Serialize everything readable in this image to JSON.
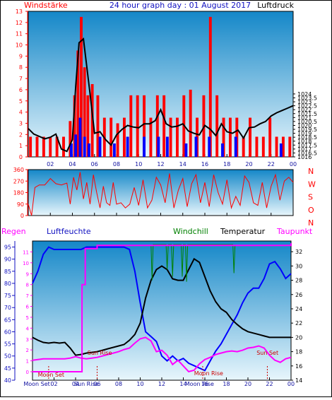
{
  "header": {
    "left": "Windstärke",
    "center": "24 hour graph day : 01 August 2017",
    "right": "Luftdruck"
  },
  "colors": {
    "wind": "#ff0000",
    "gust": "#0000ff",
    "pressure": "#000000",
    "humidity": "#0000ff",
    "temperature": "#000000",
    "windchill": "#008000",
    "dewpoint": "#ff00ff",
    "rain": "#ff00ff",
    "sun": "#ff0000",
    "moon": "#ff0000",
    "plot_top": "#1487c8",
    "plot_bottom": "#e8f6fc"
  },
  "chart_data": [
    {
      "type": "line",
      "name": "wind-and-pressure",
      "x_ticks": [
        "02",
        "04",
        "06",
        "08",
        "10",
        "12",
        "14",
        "16",
        "18",
        "20",
        "22",
        "00"
      ],
      "left_axis": {
        "label": "Windstärke",
        "ylim": [
          0,
          13
        ],
        "ticks": [
          0,
          1,
          2,
          3,
          4,
          5,
          6,
          7,
          8,
          9,
          10,
          11,
          12,
          13
        ]
      },
      "right_axis": {
        "label": "Luftdruck",
        "ylim": [
          1016,
          1034.5
        ],
        "ticks": [
          "1016",
          "1016.5",
          "1017",
          "1017.5",
          "1018",
          "1018.5",
          "1019",
          "1019.5",
          "1020",
          "1020.5",
          "1021",
          "1021.5",
          "1022",
          "1022.5",
          "1023",
          "1023.5",
          "1024"
        ],
        "tick_values": [
          1016,
          1016.5,
          1017,
          1017.5,
          1018,
          1018.5,
          1019,
          1019.5,
          1020,
          1020.5,
          1021,
          1021.5,
          1022,
          1022.5,
          1023,
          1023.5,
          1024
        ]
      },
      "series": [
        {
          "name": "Luftdruck",
          "axis": "right",
          "x": [
            0,
            0.5,
            1,
            1.5,
            2,
            2.5,
            3,
            3.5,
            4,
            4.3,
            4.6,
            5,
            5.3,
            5.6,
            6,
            6.5,
            7,
            7.5,
            8,
            8.5,
            9,
            9.5,
            10,
            10.5,
            11,
            11.5,
            12,
            12.5,
            13,
            13.5,
            14,
            14.5,
            15,
            15.5,
            16,
            16.5,
            17,
            17.5,
            18,
            18.5,
            19,
            19.5,
            20,
            20.5,
            21,
            21.5,
            22,
            22.5,
            23,
            23.5,
            24
          ],
          "y": [
            1019.6,
            1018.9,
            1018.6,
            1018.3,
            1018.5,
            1018.9,
            1017.0,
            1016.7,
            1018.2,
            1025.0,
            1030.5,
            1031.0,
            1027.5,
            1024.0,
            1019.0,
            1019.2,
            1018.2,
            1017.5,
            1018.8,
            1019.5,
            1020.0,
            1019.8,
            1019.7,
            1020.2,
            1020.2,
            1020.6,
            1022.0,
            1020.2,
            1019.8,
            1019.9,
            1020.2,
            1019.3,
            1019.0,
            1018.8,
            1020.0,
            1019.5,
            1018.7,
            1020.2,
            1019.2,
            1019.0,
            1019.4,
            1018.4,
            1019.7,
            1019.8,
            1020.2,
            1020.5,
            1021.2,
            1021.6,
            1021.9,
            1022.2,
            1022.5
          ]
        },
        {
          "name": "Wind",
          "axis": "left",
          "style": "bars",
          "x": [
            0.2,
            0.8,
            1.4,
            2.0,
            2.6,
            3.2,
            3.8,
            4.2,
            4.5,
            4.8,
            5.1,
            5.4,
            5.8,
            6.3,
            6.9,
            7.5,
            8.1,
            8.7,
            9.3,
            9.9,
            10.5,
            11.1,
            11.7,
            12.3,
            12.9,
            13.5,
            14.1,
            14.7,
            15.3,
            15.9,
            16.5,
            17.1,
            17.7,
            18.3,
            18.9,
            19.5,
            20.1,
            20.7,
            21.3,
            21.9,
            22.5,
            23.1,
            23.7
          ],
          "y": [
            1.8,
            1.8,
            1.8,
            1.8,
            1.8,
            1.8,
            3.2,
            5.5,
            9.5,
            12.5,
            8.0,
            5.5,
            6.5,
            5.5,
            3.5,
            3.5,
            3.0,
            3.5,
            5.5,
            5.5,
            5.5,
            3.5,
            5.5,
            5.5,
            3.5,
            3.5,
            5.5,
            6.0,
            3.5,
            5.5,
            12.5,
            5.5,
            3.5,
            3.5,
            3.5,
            1.8,
            3.5,
            1.8,
            1.8,
            3.5,
            1.8,
            1.8,
            1.8
          ]
        },
        {
          "name": "Böen",
          "axis": "left",
          "style": "bars",
          "x": [
            3.9,
            4.3,
            4.7,
            5.1,
            5.5,
            6.5,
            7.8,
            9.0,
            10.5,
            11.8,
            12.6,
            14.3,
            15.2,
            16.4,
            17.6,
            18.8,
            22.9
          ],
          "y": [
            1.2,
            2.0,
            3.5,
            1.8,
            1.2,
            1.8,
            1.2,
            1.8,
            1.8,
            1.8,
            1.8,
            1.2,
            1.8,
            1.8,
            1.2,
            1.8,
            1.2
          ]
        }
      ]
    },
    {
      "type": "line",
      "name": "wind-direction",
      "x_ticks": [
        "02",
        "04",
        "06",
        "08",
        "10",
        "12",
        "14",
        "16",
        "18",
        "20",
        "22",
        "00"
      ],
      "left_axis": {
        "ylim": [
          0,
          360
        ],
        "ticks": [
          0,
          90,
          180,
          270,
          360
        ]
      },
      "right_axis_labels": [
        "N",
        "W",
        "S",
        "O",
        "N"
      ],
      "series": [
        {
          "name": "Windrichtung",
          "x": [
            0,
            0.3,
            0.6,
            1.0,
            1.5,
            2.0,
            2.5,
            3.0,
            3.5,
            3.8,
            4.1,
            4.4,
            4.7,
            5.0,
            5.3,
            5.6,
            5.9,
            6.2,
            6.5,
            6.8,
            7.1,
            7.4,
            7.7,
            8.0,
            8.4,
            8.8,
            9.2,
            9.6,
            10.0,
            10.4,
            10.8,
            11.2,
            11.6,
            12.0,
            12.4,
            12.8,
            13.2,
            13.6,
            14.0,
            14.4,
            14.8,
            15.2,
            15.6,
            16.0,
            16.4,
            16.8,
            17.2,
            17.6,
            18.0,
            18.4,
            18.8,
            19.2,
            19.6,
            20.0,
            20.4,
            20.8,
            21.2,
            21.6,
            22.0,
            22.4,
            22.8,
            23.2,
            23.6,
            24
          ],
          "y": [
            90,
            0,
            220,
            240,
            240,
            290,
            250,
            240,
            255,
            90,
            300,
            200,
            340,
            130,
            260,
            90,
            320,
            180,
            60,
            230,
            100,
            80,
            260,
            90,
            100,
            60,
            90,
            220,
            80,
            280,
            60,
            120,
            300,
            240,
            100,
            330,
            60,
            200,
            290,
            70,
            250,
            320,
            100,
            260,
            70,
            320,
            180,
            90,
            280,
            60,
            150,
            80,
            310,
            260,
            100,
            80,
            260,
            60,
            230,
            320,
            120,
            270,
            300,
            260
          ]
        }
      ]
    },
    {
      "type": "line",
      "name": "temperature-humidity",
      "x_ticks": [
        "02",
        "04",
        "06",
        "08",
        "10",
        "12",
        "14",
        "16",
        "18",
        "20",
        "22",
        "00"
      ],
      "left_axis": {
        "label": "Regen",
        "ylim": [
          40,
          97.5
        ],
        "ticks": [
          40,
          45,
          50,
          55,
          60,
          65,
          70,
          75,
          80,
          85,
          90,
          95
        ]
      },
      "inner_left_axis": {
        "ticks": [
          0,
          1,
          2,
          3,
          4,
          5,
          6,
          7,
          8,
          9,
          10,
          11
        ]
      },
      "right_axis": {
        "label": "Taupunkt",
        "ylim": [
          14,
          33.5
        ],
        "ticks": [
          14,
          16,
          18,
          20,
          22,
          24,
          26,
          28,
          30,
          32
        ]
      },
      "legend": [
        "Regen",
        "Luftfeuchte",
        "Windchill",
        "Temperatur",
        "Taupunkt"
      ],
      "annotations": [
        {
          "text": "Moon Set",
          "x": 0.5,
          "y": 41.5
        },
        {
          "text": "Sun Rise",
          "x": 5.1,
          "y": 50.5
        },
        {
          "text": "Moon Rise",
          "x": 15.0,
          "y": 42.0
        },
        {
          "text": "Sun Set",
          "x": 20.8,
          "y": 50.5
        }
      ],
      "bottom_labels": [
        "Moon Set",
        "Sun Rise",
        "Moon Rise"
      ],
      "series": [
        {
          "name": "Luftfeuchte",
          "axis": "left",
          "x": [
            0,
            0.5,
            1,
            1.5,
            2,
            2.5,
            3,
            3.5,
            4,
            4.5,
            5,
            5.5,
            6,
            6.5,
            7,
            7.5,
            8,
            8.5,
            9,
            9.5,
            10,
            10.5,
            11,
            11.5,
            12,
            12.5,
            13,
            13.5,
            14,
            14.5,
            15,
            15.5,
            16,
            16.5,
            17,
            17.5,
            18,
            18.5,
            19,
            19.5,
            20,
            20.5,
            21,
            21.5,
            22,
            22.5,
            23,
            23.5,
            24
          ],
          "y": [
            80,
            85,
            92,
            95,
            94,
            94,
            94,
            94,
            94,
            94,
            95,
            95,
            95,
            95,
            95,
            95,
            95,
            95,
            94,
            85,
            72,
            60,
            58,
            56,
            50,
            48,
            50,
            48,
            49,
            47,
            46,
            45,
            44,
            48,
            52,
            55,
            59,
            63,
            67,
            72,
            76,
            78,
            78,
            82,
            88,
            89,
            86,
            82,
            84
          ]
        },
        {
          "name": "Temperatur",
          "axis": "right",
          "x": [
            0,
            0.5,
            1,
            1.5,
            2,
            2.5,
            3,
            3.5,
            4,
            4.5,
            5,
            5.5,
            6,
            6.5,
            7,
            7.5,
            8,
            8.5,
            9,
            9.5,
            10,
            10.5,
            11,
            11.5,
            12,
            12.5,
            13,
            13.5,
            14,
            14.5,
            15,
            15.5,
            16,
            16.5,
            17,
            17.5,
            18,
            18.5,
            19,
            19.5,
            20,
            20.5,
            21,
            21.5,
            22,
            22.5,
            23,
            23.5,
            24
          ],
          "y": [
            20.0,
            19.6,
            19.3,
            19.2,
            19.3,
            19.2,
            19.3,
            18.5,
            17.5,
            17.6,
            17.8,
            17.9,
            18.0,
            18.2,
            18.4,
            18.6,
            18.8,
            19.0,
            19.6,
            20.4,
            22.0,
            25.5,
            28.0,
            29.5,
            30.0,
            29.5,
            28.2,
            28.0,
            28.0,
            29.5,
            31.0,
            30.5,
            28.5,
            26.5,
            25.0,
            24.0,
            23.5,
            22.5,
            21.8,
            21.2,
            20.8,
            20.6,
            20.4,
            20.2,
            20.0,
            20.0,
            20.0,
            20.0,
            20.0
          ]
        },
        {
          "name": "Taupunkt",
          "axis": "right",
          "x": [
            0,
            0.5,
            1,
            1.5,
            2,
            2.5,
            3,
            3.5,
            4,
            4.5,
            5,
            5.5,
            6,
            6.5,
            7,
            7.5,
            8,
            8.5,
            9,
            9.5,
            10,
            10.5,
            11,
            11.5,
            12,
            12.5,
            13,
            13.5,
            14,
            14.5,
            15,
            15.5,
            16,
            16.5,
            17,
            17.5,
            18,
            18.5,
            19,
            19.5,
            20,
            20.5,
            21,
            21.5,
            22,
            22.5,
            23,
            23.5,
            24
          ],
          "y": [
            16.8,
            16.9,
            17.0,
            17.0,
            17.0,
            17.0,
            17.0,
            17.1,
            17.3,
            17.1,
            17.0,
            17.1,
            17.2,
            17.4,
            17.6,
            17.8,
            18.0,
            18.3,
            18.5,
            19.2,
            19.8,
            20.0,
            19.5,
            18.0,
            18.2,
            17.5,
            16.2,
            16.8,
            16.0,
            15.2,
            15.4,
            16.3,
            16.9,
            17.2,
            17.6,
            17.8,
            18.0,
            18.1,
            18.0,
            18.2,
            18.5,
            18.6,
            18.8,
            18.5,
            17.5,
            16.8,
            16.5,
            17.0,
            17.2
          ]
        },
        {
          "name": "Windchill",
          "axis": "right",
          "x": [
            11.0,
            11.1,
            11.2,
            12.4,
            12.5,
            12.6,
            12.9,
            13.0,
            13.1,
            13.8,
            13.9,
            14.0,
            14.2,
            14.3,
            14.4,
            18.6,
            18.7,
            18.8
          ],
          "y": [
            33.0,
            28.0,
            33.0,
            33.0,
            29.5,
            33.0,
            33.0,
            28.5,
            33.0,
            33.0,
            28.5,
            33.0,
            33.0,
            27.8,
            33.0,
            33.0,
            29.0,
            33.0
          ]
        },
        {
          "name": "Regen",
          "axis": "inner_left",
          "style": "step",
          "x": [
            0,
            4.3,
            4.6,
            4.9,
            6,
            12,
            18,
            24
          ],
          "y": [
            0,
            0,
            8,
            11.3,
            11.6,
            11.6,
            11.6,
            11.8
          ]
        }
      ]
    }
  ]
}
